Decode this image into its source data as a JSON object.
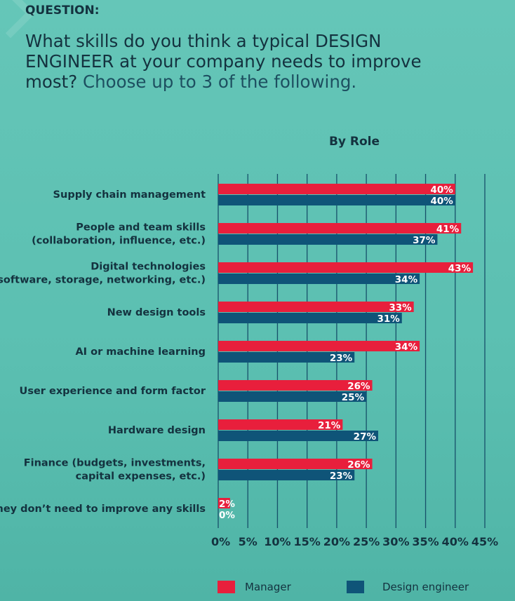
{
  "header": {
    "label": "QUESTION:",
    "question_main": "What skills do you think a typical DESIGN ENGINEER at your company needs to improve most?",
    "question_sub": "Choose up to 3 of the following."
  },
  "colors": {
    "manager": "#e81f3c",
    "design_engineer": "#0f5478"
  },
  "chart_data": {
    "type": "bar",
    "orientation": "horizontal",
    "title": "By Role",
    "categories": [
      [
        "Supply chain management"
      ],
      [
        "People and team skills",
        "(collaboration, influence, etc.)"
      ],
      [
        "Digital technologies",
        "(software, storage, networking, etc.)"
      ],
      [
        "New design tools"
      ],
      [
        "AI or machine learning"
      ],
      [
        "User experience and form factor"
      ],
      [
        "Hardware design"
      ],
      [
        "Finance (budgets, investments,",
        "capital expenses, etc.)"
      ],
      [
        "They don’t need to improve any skills"
      ]
    ],
    "series": [
      {
        "name": "Manager",
        "values": [
          40,
          41,
          43,
          33,
          34,
          26,
          21,
          26,
          2
        ]
      },
      {
        "name": "Design engineer",
        "values": [
          40,
          37,
          34,
          31,
          23,
          25,
          27,
          23,
          0
        ]
      }
    ],
    "xlim": [
      0,
      45
    ],
    "ticks": [
      "0%",
      "5%",
      "10%",
      "15%",
      "20%",
      "25%",
      "30%",
      "35%",
      "40%",
      "45%"
    ],
    "grid": true,
    "legend_position": "bottom"
  }
}
